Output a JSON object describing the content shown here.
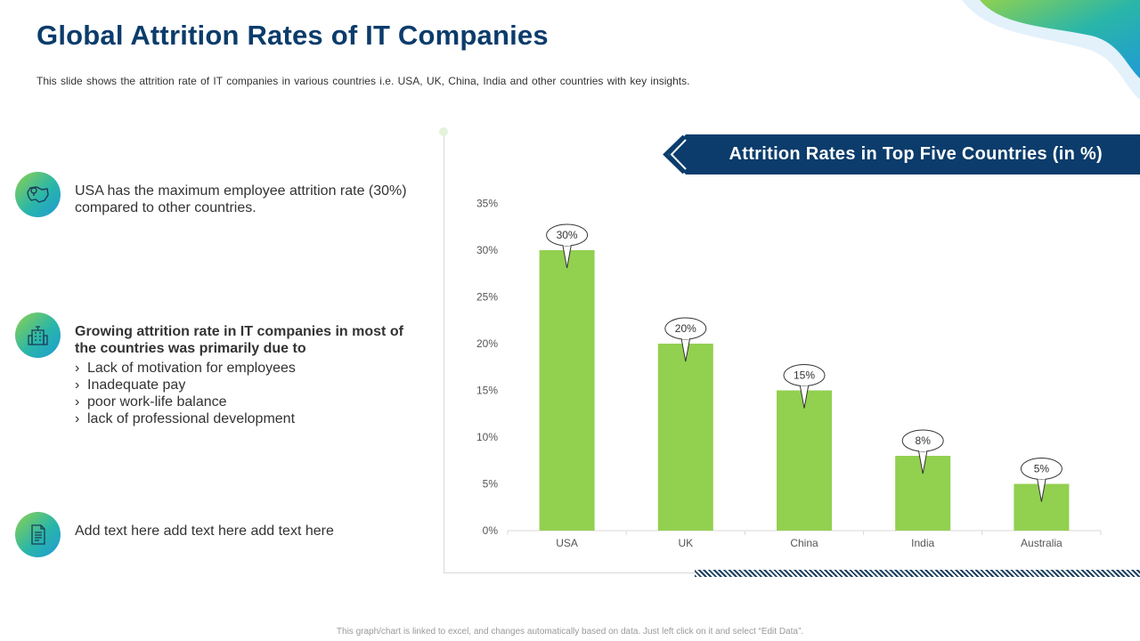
{
  "title": "Global Attrition Rates of IT Companies",
  "subtitle": "This slide shows the attrition rate of IT companies in various countries i.e. USA, UK, China, India and other countries with key insights.",
  "insights": [
    {
      "icon": "map-icon",
      "text": "USA has the maximum employee attrition rate (30%) compared to other countries."
    },
    {
      "icon": "building-icon",
      "heading": "Growing attrition rate in IT companies in most of the countries was primarily due to",
      "bullets": [
        "Lack of motivation for employees",
        "Inadequate pay",
        "poor work-life balance",
        "lack of professional development"
      ]
    },
    {
      "icon": "document-icon",
      "text": "Add text here add text here add text here"
    }
  ],
  "bullet_marker": "›",
  "chart_data": {
    "type": "bar",
    "title": "Attrition Rates in Top Five Countries (in %)",
    "categories": [
      "USA",
      "UK",
      "China",
      "India",
      "Australia"
    ],
    "values": [
      30,
      20,
      15,
      8,
      5
    ],
    "data_labels": [
      "30%",
      "20%",
      "15%",
      "8%",
      "5%"
    ],
    "y_ticks": [
      "0%",
      "5%",
      "10%",
      "15%",
      "20%",
      "25%",
      "30%",
      "35%"
    ],
    "ylim": [
      0,
      35
    ],
    "xlabel": "",
    "ylabel": "",
    "bar_color": "#92d050",
    "grid": false,
    "legend": "none"
  },
  "footnote": "This graph/chart is linked to excel, and changes automatically based on data. Just left click on it and select “Edit Data”.",
  "colors": {
    "title": "#0b3c6b",
    "banner": "#0b3c6b",
    "accent_green": "#92d050",
    "accent_blue": "#1f9ad6"
  }
}
